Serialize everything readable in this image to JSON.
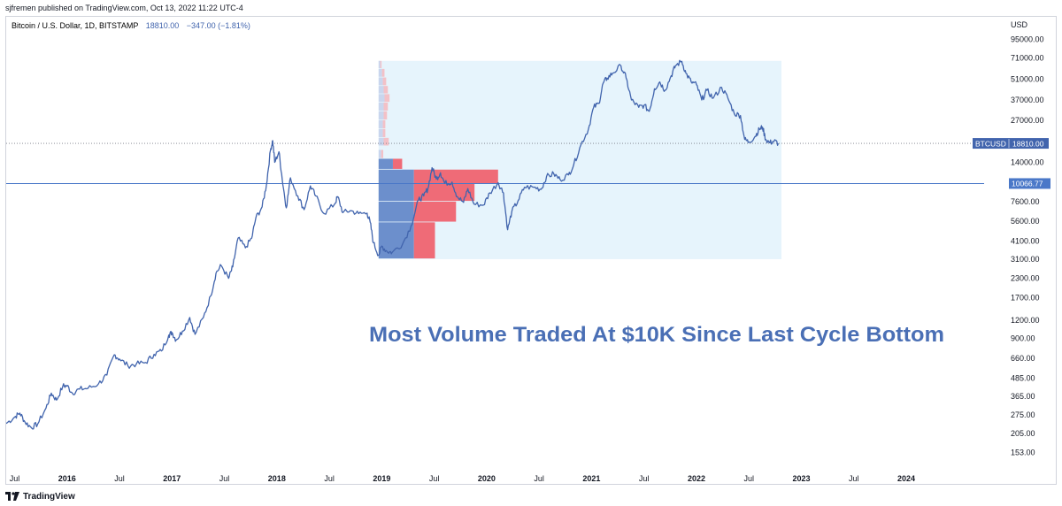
{
  "header": {
    "published": "sjfremen published on TradingView.com, Oct 13, 2022 11:22 UTC-4"
  },
  "legend": {
    "symbol": "Bitcoin / U.S. Dollar, 1D, BITSTAMP",
    "price": "18810.00",
    "change": "−347.00 (−1.81%)"
  },
  "footer": {
    "brand": "TradingView",
    "logo_icon": "tradingview-logo-icon"
  },
  "colors": {
    "price_line": "#4164ad",
    "annotation": "#4a6fb5",
    "hline": "#4a78c8",
    "vp_box": "#e6f4fc",
    "vp_blue": "#6c8fcc",
    "vp_red": "#ef6b77"
  },
  "chart_data": {
    "type": "line",
    "title": "Bitcoin / U.S. Dollar, 1D, BITSTAMP",
    "scale": "log",
    "currency": "USD",
    "ylim": [
      120,
      135000
    ],
    "xlim": [
      2015.42,
      2024.7
    ],
    "y_ticks": [
      "95000.00",
      "71000.00",
      "51000.00",
      "37000.00",
      "27000.00",
      "14000.00",
      "7600.00",
      "5600.00",
      "4100.00",
      "3100.00",
      "2300.00",
      "1700.00",
      "1200.00",
      "900.00",
      "660.00",
      "485.00",
      "365.00",
      "275.00",
      "205.00",
      "153.00"
    ],
    "x_ticks": [
      {
        "label": "Jul",
        "t": 2015.5,
        "bold": false
      },
      {
        "label": "2016",
        "t": 2016.0,
        "bold": true
      },
      {
        "label": "Jul",
        "t": 2016.5,
        "bold": false
      },
      {
        "label": "2017",
        "t": 2017.0,
        "bold": true
      },
      {
        "label": "Jul",
        "t": 2017.5,
        "bold": false
      },
      {
        "label": "2018",
        "t": 2018.0,
        "bold": true
      },
      {
        "label": "Jul",
        "t": 2018.5,
        "bold": false
      },
      {
        "label": "2019",
        "t": 2019.0,
        "bold": true
      },
      {
        "label": "Jul",
        "t": 2019.5,
        "bold": false
      },
      {
        "label": "2020",
        "t": 2020.0,
        "bold": true
      },
      {
        "label": "Jul",
        "t": 2020.5,
        "bold": false
      },
      {
        "label": "2021",
        "t": 2021.0,
        "bold": true
      },
      {
        "label": "Jul",
        "t": 2021.5,
        "bold": false
      },
      {
        "label": "2022",
        "t": 2022.0,
        "bold": true
      },
      {
        "label": "Jul",
        "t": 2022.5,
        "bold": false
      },
      {
        "label": "2023",
        "t": 2023.0,
        "bold": true
      },
      {
        "label": "Jul",
        "t": 2023.5,
        "bold": false
      },
      {
        "label": "2024",
        "t": 2024.0,
        "bold": true
      }
    ],
    "series": [
      {
        "name": "BTCUSD",
        "points": [
          [
            2015.42,
            240
          ],
          [
            2015.5,
            265
          ],
          [
            2015.55,
            282
          ],
          [
            2015.6,
            245
          ],
          [
            2015.66,
            225
          ],
          [
            2015.72,
            238
          ],
          [
            2015.8,
            305
          ],
          [
            2015.85,
            385
          ],
          [
            2015.9,
            345
          ],
          [
            2015.96,
            430
          ],
          [
            2016.0,
            432
          ],
          [
            2016.05,
            385
          ],
          [
            2016.12,
            410
          ],
          [
            2016.2,
            415
          ],
          [
            2016.3,
            445
          ],
          [
            2016.38,
            510
          ],
          [
            2016.45,
            700
          ],
          [
            2016.5,
            655
          ],
          [
            2016.58,
            590
          ],
          [
            2016.66,
            605
          ],
          [
            2016.75,
            620
          ],
          [
            2016.83,
            705
          ],
          [
            2016.9,
            742
          ],
          [
            2016.97,
            950
          ],
          [
            2017.0,
            990
          ],
          [
            2017.04,
            880
          ],
          [
            2017.1,
            1010
          ],
          [
            2017.17,
            1250
          ],
          [
            2017.22,
            960
          ],
          [
            2017.3,
            1250
          ],
          [
            2017.37,
            1750
          ],
          [
            2017.42,
            2500
          ],
          [
            2017.47,
            2800
          ],
          [
            2017.54,
            2300
          ],
          [
            2017.58,
            2750
          ],
          [
            2017.63,
            4300
          ],
          [
            2017.7,
            3700
          ],
          [
            2017.76,
            4300
          ],
          [
            2017.8,
            5900
          ],
          [
            2017.86,
            7000
          ],
          [
            2017.9,
            9800
          ],
          [
            2017.94,
            17000
          ],
          [
            2017.96,
            19650
          ],
          [
            2017.98,
            14000
          ],
          [
            2018.02,
            16500
          ],
          [
            2018.05,
            11000
          ],
          [
            2018.09,
            6900
          ],
          [
            2018.13,
            11000
          ],
          [
            2018.2,
            8300
          ],
          [
            2018.26,
            6700
          ],
          [
            2018.32,
            9700
          ],
          [
            2018.37,
            8300
          ],
          [
            2018.45,
            6300
          ],
          [
            2018.55,
            7300
          ],
          [
            2018.58,
            8200
          ],
          [
            2018.63,
            6400
          ],
          [
            2018.7,
            6600
          ],
          [
            2018.78,
            6300
          ],
          [
            2018.86,
            6350
          ],
          [
            2018.89,
            5500
          ],
          [
            2018.92,
            4000
          ],
          [
            2018.97,
            3300
          ],
          [
            2019.0,
            3800
          ],
          [
            2019.05,
            3500
          ],
          [
            2019.1,
            3450
          ],
          [
            2019.2,
            3950
          ],
          [
            2019.28,
            5200
          ],
          [
            2019.35,
            7800
          ],
          [
            2019.4,
            8300
          ],
          [
            2019.44,
            9300
          ],
          [
            2019.48,
            12900
          ],
          [
            2019.52,
            10800
          ],
          [
            2019.56,
            11900
          ],
          [
            2019.6,
            10100
          ],
          [
            2019.67,
            10300
          ],
          [
            2019.72,
            8200
          ],
          [
            2019.78,
            7500
          ],
          [
            2019.82,
            9300
          ],
          [
            2019.88,
            7300
          ],
          [
            2019.97,
            7200
          ],
          [
            2020.03,
            8700
          ],
          [
            2020.11,
            10200
          ],
          [
            2020.16,
            8700
          ],
          [
            2020.2,
            4900
          ],
          [
            2020.24,
            6500
          ],
          [
            2020.3,
            7700
          ],
          [
            2020.36,
            9500
          ],
          [
            2020.45,
            9500
          ],
          [
            2020.52,
            9200
          ],
          [
            2020.57,
            11200
          ],
          [
            2020.64,
            11700
          ],
          [
            2020.7,
            10700
          ],
          [
            2020.78,
            11500
          ],
          [
            2020.83,
            13500
          ],
          [
            2020.9,
            18500
          ],
          [
            2020.97,
            23500
          ],
          [
            2021.02,
            33000
          ],
          [
            2021.07,
            35000
          ],
          [
            2021.11,
            48000
          ],
          [
            2021.15,
            52000
          ],
          [
            2021.2,
            56000
          ],
          [
            2021.28,
            63000
          ],
          [
            2021.33,
            52000
          ],
          [
            2021.38,
            37000
          ],
          [
            2021.45,
            33000
          ],
          [
            2021.5,
            34000
          ],
          [
            2021.55,
            31000
          ],
          [
            2021.6,
            44000
          ],
          [
            2021.65,
            49000
          ],
          [
            2021.7,
            43000
          ],
          [
            2021.76,
            54000
          ],
          [
            2021.8,
            63000
          ],
          [
            2021.86,
            67500
          ],
          [
            2021.9,
            56000
          ],
          [
            2021.95,
            49000
          ],
          [
            2022.0,
            47000
          ],
          [
            2022.05,
            37000
          ],
          [
            2022.1,
            43000
          ],
          [
            2022.16,
            38000
          ],
          [
            2022.24,
            45000
          ],
          [
            2022.3,
            38000
          ],
          [
            2022.36,
            30000
          ],
          [
            2022.42,
            29000
          ],
          [
            2022.46,
            20000
          ],
          [
            2022.5,
            19200
          ],
          [
            2022.56,
            21000
          ],
          [
            2022.6,
            23500
          ],
          [
            2022.63,
            24200
          ],
          [
            2022.66,
            20000
          ],
          [
            2022.7,
            19000
          ],
          [
            2022.74,
            19500
          ],
          [
            2022.78,
            18810
          ]
        ]
      }
    ],
    "horizontal_line": {
      "value": 10066.77,
      "label": "10066.77"
    },
    "last_price": {
      "symbol": "BTCUSD",
      "value": 18810.0,
      "label": "18810.00"
    },
    "volume_profile": {
      "x_start": 2018.97,
      "x_end": 2022.81,
      "price_low": 3100,
      "price_high": 68000,
      "rows": [
        {
          "lo": 3100,
          "hi": 5500,
          "up": 0.42,
          "down": 0.25
        },
        {
          "lo": 5500,
          "hi": 7600,
          "up": 0.42,
          "down": 0.5
        },
        {
          "lo": 7600,
          "hi": 10000,
          "up": 0.42,
          "down": 0.72
        },
        {
          "lo": 10000,
          "hi": 12500,
          "up": 0.42,
          "down": 1.0
        },
        {
          "lo": 12500,
          "hi": 14800,
          "up": 0.17,
          "down": 0.11
        },
        {
          "lo": 14800,
          "hi": 17000,
          "up": 0.03,
          "down": 0.025
        },
        {
          "lo": 18000,
          "hi": 20500,
          "up": 0.06,
          "down": 0.06
        },
        {
          "lo": 20500,
          "hi": 23500,
          "up": 0.05,
          "down": 0.03
        },
        {
          "lo": 23500,
          "hi": 27000,
          "up": 0.05,
          "down": 0.03
        },
        {
          "lo": 27000,
          "hi": 31000,
          "up": 0.06,
          "down": 0.04
        },
        {
          "lo": 31000,
          "hi": 35500,
          "up": 0.06,
          "down": 0.05
        },
        {
          "lo": 35500,
          "hi": 40500,
          "up": 0.07,
          "down": 0.06
        },
        {
          "lo": 40500,
          "hi": 46000,
          "up": 0.06,
          "down": 0.05
        },
        {
          "lo": 46000,
          "hi": 52500,
          "up": 0.05,
          "down": 0.04
        },
        {
          "lo": 52500,
          "hi": 60000,
          "up": 0.04,
          "down": 0.03
        },
        {
          "lo": 60000,
          "hi": 68000,
          "up": 0.02,
          "down": 0.015
        }
      ]
    },
    "annotation": "Most Volume Traded At $10K Since Last Cycle Bottom"
  }
}
